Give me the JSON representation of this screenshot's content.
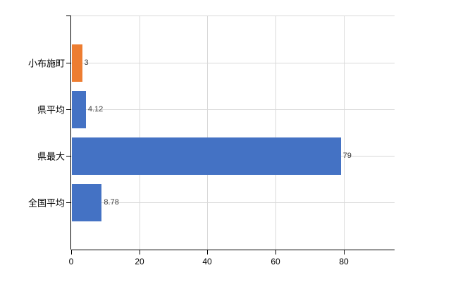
{
  "chart_data": {
    "type": "bar",
    "orientation": "horizontal",
    "categories": [
      "小布施町",
      "県平均",
      "県最大",
      "全国平均"
    ],
    "values": [
      3,
      4.12,
      79,
      8.78
    ],
    "value_labels": [
      "3",
      "4.12",
      "79",
      "8.78"
    ],
    "bar_colors": [
      "#ED7D31",
      "#4472C4",
      "#4472C4",
      "#4472C4"
    ],
    "x_ticks": [
      0,
      20,
      40,
      60,
      80
    ],
    "x_tick_labels": [
      "0",
      "20",
      "40",
      "60",
      "80"
    ],
    "xlim": [
      0,
      95
    ],
    "grid": true,
    "legend": false
  },
  "colors": {
    "bar_blue": "#4472C4",
    "bar_orange": "#ED7D31",
    "axis": "#000000",
    "gridline": "#d9d9d9",
    "value_label": "#404040",
    "background": "#ffffff"
  }
}
